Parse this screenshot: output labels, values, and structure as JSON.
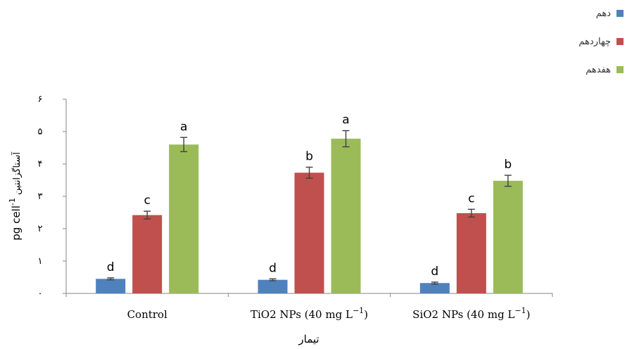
{
  "chart_data": {
    "type": "bar",
    "categories": [
      "Control",
      "TiO2 NPs (40 mg L",
      "SiO2 NPs (40 mg L"
    ],
    "category_superscripts": [
      "",
      "−1",
      "−1"
    ],
    "category_suffixes": [
      "",
      ")",
      ")"
    ],
    "series": [
      {
        "name": "دهم",
        "color": "#4f81bd",
        "values": [
          0.45,
          0.42,
          0.32
        ],
        "errors": [
          0.03,
          0.03,
          0.03
        ],
        "letters": [
          "d",
          "d",
          "d"
        ]
      },
      {
        "name": "چهاردهم",
        "color": "#c0504d",
        "values": [
          2.42,
          3.73,
          2.48
        ],
        "errors": [
          0.12,
          0.17,
          0.12
        ],
        "letters": [
          "c",
          "b",
          "c"
        ]
      },
      {
        "name": "هفدهم",
        "color": "#9bbb59",
        "values": [
          4.6,
          4.78,
          3.48
        ],
        "errors": [
          0.22,
          0.25,
          0.17
        ],
        "letters": [
          "a",
          "a",
          "b"
        ]
      }
    ],
    "yticks": [
      "۰",
      "۱",
      "۲",
      "۳",
      "۴",
      "۵",
      "۶"
    ],
    "ylim": [
      0,
      6
    ],
    "ylabel_prefix": "pg cell",
    "ylabel_superscript": "-1",
    "ylabel_suffix": "آستاگزانتین",
    "xlabel": "تیمار",
    "grid": false,
    "legend_position": "top-right"
  }
}
